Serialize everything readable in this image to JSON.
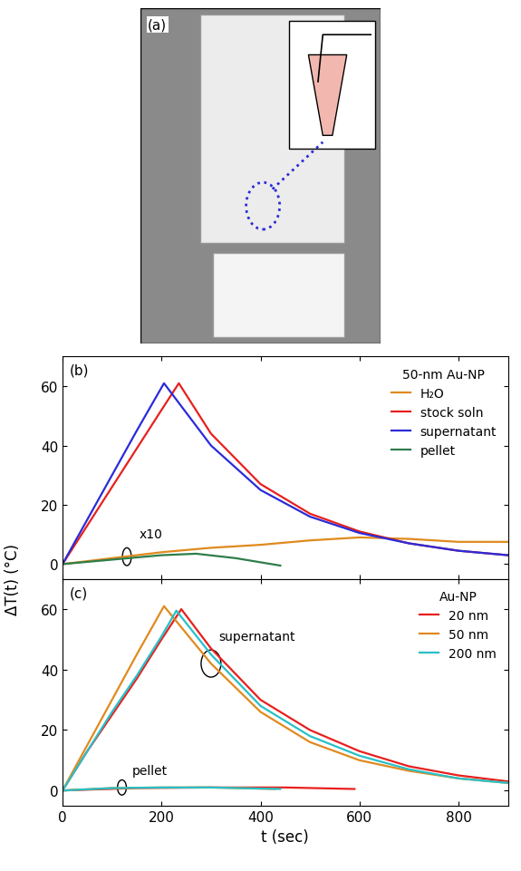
{
  "photo": {
    "label": "(a)"
  },
  "chart_data": [
    {
      "type": "line",
      "panel": "(b)",
      "ylabel": "ΔT(t) (°C)",
      "xlim": [
        0,
        900
      ],
      "xticks": [
        0,
        200,
        400,
        600,
        800
      ],
      "ylim": [
        -5,
        70
      ],
      "yticks": [
        0,
        20,
        40,
        60
      ],
      "tick_labels": "y",
      "legend": "upper right",
      "legend_title": "50-nm Au-NP",
      "annotations": [
        "x10"
      ],
      "series": [
        {
          "name": "H₂O",
          "color": "#e08a1e",
          "x": [
            0,
            100,
            200,
            300,
            400,
            500,
            600,
            700,
            800,
            900
          ],
          "values": [
            0,
            2,
            4,
            5.5,
            6.5,
            8,
            9,
            8.5,
            7.5,
            7.5
          ]
        },
        {
          "name": "stock soln",
          "color": "#e8201e",
          "x": [
            0,
            50,
            100,
            150,
            200,
            235,
            300,
            400,
            500,
            600,
            700,
            800,
            900
          ],
          "values": [
            0,
            13,
            26,
            39,
            52,
            61,
            44,
            27,
            17,
            11,
            7,
            4.5,
            3
          ]
        },
        {
          "name": "supernatant",
          "color": "#2b2bd8",
          "x": [
            0,
            40,
            50,
            100,
            150,
            205,
            300,
            400,
            500,
            600,
            700,
            800,
            900
          ],
          "values": [
            0,
            12,
            15,
            30,
            45,
            61,
            40,
            25,
            16,
            10.5,
            7,
            4.5,
            3
          ]
        },
        {
          "name": "pellet",
          "color": "#2e7d4a",
          "x": [
            0,
            100,
            200,
            270,
            350,
            440
          ],
          "values": [
            0,
            1.5,
            3,
            3.5,
            2,
            -0.5
          ]
        }
      ]
    },
    {
      "type": "line",
      "panel": "(c)",
      "xlabel": "t (sec)",
      "xlim": [
        0,
        900
      ],
      "xticks": [
        0,
        200,
        400,
        600,
        800
      ],
      "ylim": [
        -5,
        70
      ],
      "yticks": [
        0,
        20,
        40,
        60
      ],
      "legend": "upper right",
      "legend_title": "Au-NP",
      "annotations": [
        "supernatant",
        "pellet"
      ],
      "series": [
        {
          "name": "20 nm",
          "color": "#e8201e",
          "x": [
            0,
            50,
            100,
            150,
            200,
            240,
            300,
            400,
            500,
            600,
            700,
            800,
            900
          ],
          "values": [
            0,
            13,
            25,
            37,
            50,
            60,
            47,
            30,
            20,
            13,
            8,
            5,
            3
          ],
          "pellet_x": [
            0,
            150,
            300,
            450,
            590
          ],
          "pellet_values": [
            0,
            0.8,
            1,
            1,
            0.5
          ]
        },
        {
          "name": "50 nm",
          "color": "#e08a1e",
          "x": [
            0,
            50,
            100,
            150,
            205,
            300,
            400,
            500,
            600,
            700,
            800,
            900
          ],
          "values": [
            0,
            15,
            30,
            45,
            61,
            42,
            26,
            16,
            10,
            6.5,
            4,
            2.5
          ],
          "pellet_x": [
            0,
            100,
            200,
            300,
            430
          ],
          "pellet_values": [
            0,
            0.8,
            1,
            1,
            0.5
          ]
        },
        {
          "name": "200 nm",
          "color": "#27c0c8",
          "x": [
            0,
            50,
            100,
            150,
            200,
            230,
            300,
            400,
            500,
            600,
            700,
            800,
            900
          ],
          "values": [
            0,
            13,
            26,
            38,
            51,
            59.5,
            45,
            28,
            18,
            11.5,
            7,
            4,
            2.5
          ],
          "pellet_x": [
            0,
            100,
            200,
            300,
            440
          ],
          "pellet_values": [
            0,
            0.8,
            1,
            1,
            0.5
          ]
        }
      ]
    }
  ]
}
